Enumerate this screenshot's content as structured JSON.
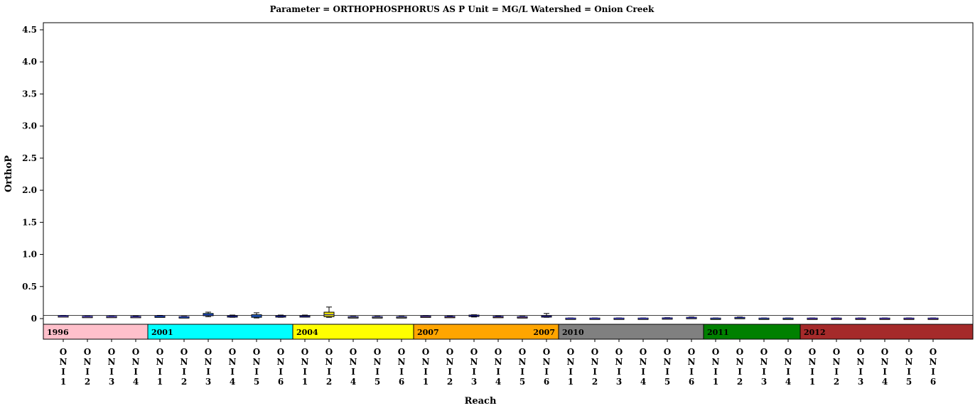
{
  "chart_data": {
    "type": "box",
    "title": "Parameter = ORTHOPHOSPHORUS AS P Unit = MG/L Watershed = Onion Creek",
    "ylabel": "OrthoP",
    "xlabel": "Reach",
    "ylim": [
      0,
      4.6
    ],
    "yticks": [
      "0",
      "0.5",
      "1.0",
      "1.5",
      "2.0",
      "2.5",
      "3.0",
      "3.5",
      "4.0",
      "4.5"
    ],
    "ytick_values": [
      0,
      0.5,
      1.0,
      1.5,
      2.0,
      2.5,
      3.0,
      3.5,
      4.0,
      4.5
    ],
    "reference_line": 0.05,
    "groups": [
      {
        "label": "1996",
        "color": "#ffc0cb",
        "reaches": [
          "ONI1",
          "ONI2",
          "ONI3",
          "ONI4"
        ]
      },
      {
        "label": "2001",
        "color": "#00ffff",
        "reaches": [
          "ONI1",
          "ONI2",
          "ONI3",
          "ONI4",
          "ONI5",
          "ONI6"
        ]
      },
      {
        "label": "2004",
        "color": "#ffff00",
        "reaches": [
          "ONI1",
          "ONI2",
          "ONI4",
          "ONI5",
          "ONI6"
        ]
      },
      {
        "label": "2007",
        "label2": "2007",
        "color": "#ffa500",
        "reaches": [
          "ONI1",
          "ONI2",
          "ONI3",
          "ONI4",
          "ONI5",
          "ONI6"
        ]
      },
      {
        "label": "2010",
        "color": "#808080",
        "reaches": [
          "ONI1",
          "ONI2",
          "ONI3",
          "ONI4",
          "ONI5",
          "ONI6"
        ]
      },
      {
        "label": "2011",
        "color": "#008000",
        "reaches": [
          "ONI1",
          "ONI2",
          "ONI3",
          "ONI4"
        ]
      },
      {
        "label": "2012",
        "color": "#a52a2a",
        "reaches": [
          "ONI1",
          "ONI2",
          "ONI3",
          "ONI4",
          "ONI5",
          "ONI6"
        ]
      }
    ],
    "boxes": [
      {
        "year": "1996",
        "reach": "ONI1",
        "min": 0.03,
        "q1": 0.035,
        "median": 0.04,
        "q3": 0.045,
        "max": 0.05,
        "color": "#c8a0d0"
      },
      {
        "year": "1996",
        "reach": "ONI2",
        "min": 0.025,
        "q1": 0.03,
        "median": 0.033,
        "q3": 0.036,
        "max": 0.04,
        "color": "#c8a0d0"
      },
      {
        "year": "1996",
        "reach": "ONI3",
        "min": 0.025,
        "q1": 0.03,
        "median": 0.033,
        "q3": 0.036,
        "max": 0.04,
        "color": "#c8a0d0"
      },
      {
        "year": "1996",
        "reach": "ONI4",
        "min": 0.02,
        "q1": 0.025,
        "median": 0.03,
        "q3": 0.035,
        "max": 0.04,
        "color": "#c8a0d0"
      },
      {
        "year": "2001",
        "reach": "ONI1",
        "min": 0.025,
        "q1": 0.03,
        "median": 0.035,
        "q3": 0.04,
        "max": 0.05,
        "color": "#1f8fd0"
      },
      {
        "year": "2001",
        "reach": "ONI2",
        "min": 0.015,
        "q1": 0.02,
        "median": 0.025,
        "q3": 0.03,
        "max": 0.035,
        "color": "#1f8fd0"
      },
      {
        "year": "2001",
        "reach": "ONI3",
        "min": 0.03,
        "q1": 0.045,
        "median": 0.06,
        "q3": 0.08,
        "max": 0.1,
        "color": "#1f8fd0"
      },
      {
        "year": "2001",
        "reach": "ONI4",
        "min": 0.02,
        "q1": 0.025,
        "median": 0.035,
        "q3": 0.045,
        "max": 0.055,
        "color": "#1f8fd0"
      },
      {
        "year": "2001",
        "reach": "ONI5",
        "min": 0.01,
        "q1": 0.02,
        "median": 0.04,
        "q3": 0.06,
        "max": 0.09,
        "color": "#1f8fd0"
      },
      {
        "year": "2001",
        "reach": "ONI6",
        "min": 0.02,
        "q1": 0.025,
        "median": 0.035,
        "q3": 0.045,
        "max": 0.055,
        "color": "#1f8fd0"
      },
      {
        "year": "2004",
        "reach": "ONI1",
        "min": 0.025,
        "q1": 0.03,
        "median": 0.035,
        "q3": 0.045,
        "max": 0.055,
        "color": "#b8b820"
      },
      {
        "year": "2004",
        "reach": "ONI2",
        "min": 0.02,
        "q1": 0.03,
        "median": 0.06,
        "q3": 0.1,
        "max": 0.18,
        "color": "#e8e000"
      },
      {
        "year": "2004",
        "reach": "ONI4",
        "min": 0.015,
        "q1": 0.02,
        "median": 0.025,
        "q3": 0.03,
        "max": 0.035,
        "color": "#b8b820"
      },
      {
        "year": "2004",
        "reach": "ONI5",
        "min": 0.015,
        "q1": 0.02,
        "median": 0.025,
        "q3": 0.03,
        "max": 0.035,
        "color": "#b8b820"
      },
      {
        "year": "2004",
        "reach": "ONI6",
        "min": 0.015,
        "q1": 0.02,
        "median": 0.025,
        "q3": 0.03,
        "max": 0.035,
        "color": "#b8b820"
      },
      {
        "year": "2007",
        "reach": "ONI1",
        "min": 0.025,
        "q1": 0.03,
        "median": 0.035,
        "q3": 0.04,
        "max": 0.045,
        "color": "#c07030"
      },
      {
        "year": "2007",
        "reach": "ONI2",
        "min": 0.02,
        "q1": 0.025,
        "median": 0.03,
        "q3": 0.035,
        "max": 0.04,
        "color": "#c07030"
      },
      {
        "year": "2007",
        "reach": "ONI3",
        "min": 0.025,
        "q1": 0.035,
        "median": 0.045,
        "q3": 0.055,
        "max": 0.06,
        "color": "#c07030"
      },
      {
        "year": "2007",
        "reach": "ONI4",
        "min": 0.02,
        "q1": 0.025,
        "median": 0.03,
        "q3": 0.035,
        "max": 0.04,
        "color": "#c07030"
      },
      {
        "year": "2007",
        "reach": "ONI5",
        "min": 0.015,
        "q1": 0.02,
        "median": 0.025,
        "q3": 0.03,
        "max": 0.035,
        "color": "#c07030"
      },
      {
        "year": "2007",
        "reach": "ONI6",
        "min": 0.02,
        "q1": 0.03,
        "median": 0.035,
        "q3": 0.045,
        "max": 0.08,
        "color": "#c07030"
      },
      {
        "year": "2010",
        "reach": "ONI1",
        "min": 0.0,
        "q1": 0.002,
        "median": 0.005,
        "q3": 0.008,
        "max": 0.01,
        "color": "#7070a0"
      },
      {
        "year": "2010",
        "reach": "ONI2",
        "min": 0.0,
        "q1": 0.002,
        "median": 0.005,
        "q3": 0.008,
        "max": 0.01,
        "color": "#7070a0"
      },
      {
        "year": "2010",
        "reach": "ONI3",
        "min": 0.0,
        "q1": 0.002,
        "median": 0.005,
        "q3": 0.008,
        "max": 0.01,
        "color": "#7070a0"
      },
      {
        "year": "2010",
        "reach": "ONI4",
        "min": 0.0,
        "q1": 0.002,
        "median": 0.005,
        "q3": 0.008,
        "max": 0.01,
        "color": "#7070a0"
      },
      {
        "year": "2010",
        "reach": "ONI5",
        "min": 0.002,
        "q1": 0.005,
        "median": 0.008,
        "q3": 0.012,
        "max": 0.015,
        "color": "#7070a0"
      },
      {
        "year": "2010",
        "reach": "ONI6",
        "min": 0.005,
        "q1": 0.01,
        "median": 0.015,
        "q3": 0.02,
        "max": 0.025,
        "color": "#7070a0"
      },
      {
        "year": "2011",
        "reach": "ONI1",
        "min": 0.0,
        "q1": 0.002,
        "median": 0.005,
        "q3": 0.008,
        "max": 0.01,
        "color": "#4a7a4a"
      },
      {
        "year": "2011",
        "reach": "ONI2",
        "min": 0.005,
        "q1": 0.01,
        "median": 0.015,
        "q3": 0.02,
        "max": 0.025,
        "color": "#4a7a4a"
      },
      {
        "year": "2011",
        "reach": "ONI3",
        "min": 0.0,
        "q1": 0.002,
        "median": 0.005,
        "q3": 0.008,
        "max": 0.01,
        "color": "#4a7a4a"
      },
      {
        "year": "2011",
        "reach": "ONI4",
        "min": 0.0,
        "q1": 0.002,
        "median": 0.005,
        "q3": 0.008,
        "max": 0.01,
        "color": "#4a7a4a"
      },
      {
        "year": "2012",
        "reach": "ONI1",
        "min": 0.0,
        "q1": 0.002,
        "median": 0.005,
        "q3": 0.008,
        "max": 0.01,
        "color": "#8a4a6a"
      },
      {
        "year": "2012",
        "reach": "ONI2",
        "min": 0.0,
        "q1": 0.002,
        "median": 0.005,
        "q3": 0.008,
        "max": 0.01,
        "color": "#8a4a6a"
      },
      {
        "year": "2012",
        "reach": "ONI3",
        "min": 0.0,
        "q1": 0.002,
        "median": 0.005,
        "q3": 0.008,
        "max": 0.01,
        "color": "#8a4a6a"
      },
      {
        "year": "2012",
        "reach": "ONI4",
        "min": 0.0,
        "q1": 0.002,
        "median": 0.005,
        "q3": 0.008,
        "max": 0.01,
        "color": "#8a4a6a"
      },
      {
        "year": "2012",
        "reach": "ONI5",
        "min": 0.0,
        "q1": 0.002,
        "median": 0.005,
        "q3": 0.008,
        "max": 0.01,
        "color": "#8a4a6a"
      },
      {
        "year": "2012",
        "reach": "ONI6",
        "min": 0.0,
        "q1": 0.002,
        "median": 0.005,
        "q3": 0.008,
        "max": 0.01,
        "color": "#8a4a6a"
      }
    ],
    "grid": false,
    "legend": "none"
  }
}
